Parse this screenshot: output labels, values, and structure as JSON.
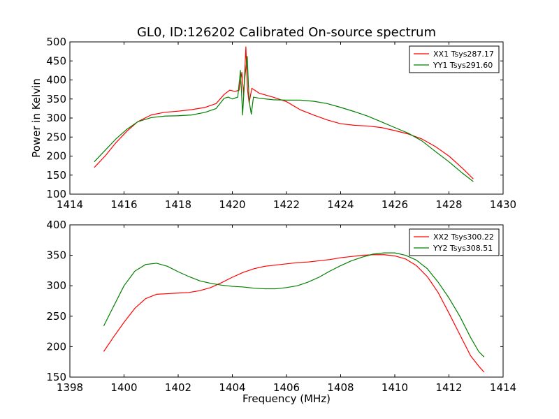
{
  "figure": {
    "title": "GL0, ID:126202 Calibrated On-source spectrum"
  },
  "chart_data": [
    {
      "type": "line",
      "title": "GL0, ID:126202 Calibrated On-source spectrum",
      "xlabel": "",
      "ylabel": "Power in Kelvin",
      "xlim": [
        1414,
        1430
      ],
      "ylim": [
        100,
        500
      ],
      "xticks": [
        1414,
        1416,
        1418,
        1420,
        1422,
        1424,
        1426,
        1428,
        1430
      ],
      "yticks": [
        100,
        150,
        200,
        250,
        300,
        350,
        400,
        450,
        500
      ],
      "grid": false,
      "legend_position": "top-right",
      "series": [
        {
          "name": "XX1 Tsys287.17",
          "color": "#ff0000",
          "points": [
            [
              1414.9,
              170
            ],
            [
              1415.3,
              200
            ],
            [
              1415.7,
              235
            ],
            [
              1416.1,
              265
            ],
            [
              1416.5,
              290
            ],
            [
              1417.0,
              308
            ],
            [
              1417.5,
              315
            ],
            [
              1418.0,
              318
            ],
            [
              1418.5,
              322
            ],
            [
              1419.0,
              328
            ],
            [
              1419.4,
              338
            ],
            [
              1419.7,
              362
            ],
            [
              1419.9,
              373
            ],
            [
              1420.1,
              370
            ],
            [
              1420.25,
              373
            ],
            [
              1420.35,
              420
            ],
            [
              1420.42,
              360
            ],
            [
              1420.5,
              487
            ],
            [
              1420.56,
              375
            ],
            [
              1420.62,
              340
            ],
            [
              1420.72,
              378
            ],
            [
              1420.85,
              372
            ],
            [
              1421.0,
              365
            ],
            [
              1421.5,
              355
            ],
            [
              1422.0,
              343
            ],
            [
              1422.5,
              322
            ],
            [
              1423.0,
              308
            ],
            [
              1423.5,
              295
            ],
            [
              1424.0,
              285
            ],
            [
              1424.5,
              281
            ],
            [
              1425.0,
              279
            ],
            [
              1425.5,
              275
            ],
            [
              1426.0,
              267
            ],
            [
              1426.5,
              258
            ],
            [
              1427.0,
              245
            ],
            [
              1427.5,
              225
            ],
            [
              1428.0,
              200
            ],
            [
              1428.5,
              168
            ],
            [
              1428.9,
              140
            ]
          ]
        },
        {
          "name": "YY1 Tsys291.60",
          "color": "#007f00",
          "points": [
            [
              1414.9,
              185
            ],
            [
              1415.3,
              215
            ],
            [
              1415.7,
              245
            ],
            [
              1416.1,
              270
            ],
            [
              1416.5,
              290
            ],
            [
              1417.0,
              301
            ],
            [
              1417.5,
              305
            ],
            [
              1418.0,
              306
            ],
            [
              1418.5,
              308
            ],
            [
              1419.0,
              315
            ],
            [
              1419.4,
              325
            ],
            [
              1419.7,
              352
            ],
            [
              1419.85,
              355
            ],
            [
              1420.0,
              350
            ],
            [
              1420.2,
              355
            ],
            [
              1420.3,
              425
            ],
            [
              1420.38,
              308
            ],
            [
              1420.45,
              400
            ],
            [
              1420.55,
              462
            ],
            [
              1420.62,
              345
            ],
            [
              1420.7,
              310
            ],
            [
              1420.78,
              355
            ],
            [
              1421.0,
              352
            ],
            [
              1421.5,
              348
            ],
            [
              1422.0,
              347
            ],
            [
              1422.5,
              347
            ],
            [
              1423.0,
              344
            ],
            [
              1423.5,
              338
            ],
            [
              1424.0,
              328
            ],
            [
              1424.5,
              317
            ],
            [
              1425.0,
              305
            ],
            [
              1425.5,
              290
            ],
            [
              1426.0,
              275
            ],
            [
              1426.5,
              260
            ],
            [
              1427.0,
              240
            ],
            [
              1427.5,
              212
            ],
            [
              1428.0,
              185
            ],
            [
              1428.5,
              155
            ],
            [
              1428.9,
              133
            ]
          ]
        }
      ]
    },
    {
      "type": "line",
      "title": "",
      "xlabel": "Frequency (MHz)",
      "ylabel": "",
      "xlim": [
        1398,
        1414
      ],
      "ylim": [
        150,
        400
      ],
      "xticks": [
        1398,
        1400,
        1402,
        1404,
        1406,
        1408,
        1410,
        1412,
        1414
      ],
      "yticks": [
        150,
        200,
        250,
        300,
        350,
        400
      ],
      "grid": false,
      "legend_position": "top-right",
      "series": [
        {
          "name": "XX2 Tsys300.22",
          "color": "#ff0000",
          "points": [
            [
              1399.25,
              192
            ],
            [
              1399.6,
              215
            ],
            [
              1400.0,
              240
            ],
            [
              1400.4,
              263
            ],
            [
              1400.8,
              279
            ],
            [
              1401.2,
              286
            ],
            [
              1401.6,
              287
            ],
            [
              1402.0,
              288
            ],
            [
              1402.4,
              289
            ],
            [
              1402.8,
              292
            ],
            [
              1403.2,
              297
            ],
            [
              1403.6,
              305
            ],
            [
              1404.0,
              314
            ],
            [
              1404.4,
              322
            ],
            [
              1404.8,
              328
            ],
            [
              1405.2,
              332
            ],
            [
              1405.6,
              334
            ],
            [
              1406.0,
              336
            ],
            [
              1406.4,
              338
            ],
            [
              1406.8,
              339
            ],
            [
              1407.2,
              341
            ],
            [
              1407.6,
              343
            ],
            [
              1408.0,
              346
            ],
            [
              1408.4,
              348
            ],
            [
              1408.8,
              350
            ],
            [
              1409.2,
              351
            ],
            [
              1409.6,
              351
            ],
            [
              1410.0,
              349
            ],
            [
              1410.4,
              344
            ],
            [
              1410.8,
              333
            ],
            [
              1411.2,
              315
            ],
            [
              1411.6,
              289
            ],
            [
              1412.0,
              255
            ],
            [
              1412.4,
              220
            ],
            [
              1412.8,
              185
            ],
            [
              1413.1,
              168
            ],
            [
              1413.3,
              158
            ]
          ]
        },
        {
          "name": "YY2 Tsys308.51",
          "color": "#007f00",
          "points": [
            [
              1399.25,
              234
            ],
            [
              1399.6,
              265
            ],
            [
              1400.0,
              300
            ],
            [
              1400.4,
              324
            ],
            [
              1400.8,
              335
            ],
            [
              1401.2,
              337
            ],
            [
              1401.6,
              332
            ],
            [
              1402.0,
              323
            ],
            [
              1402.4,
              315
            ],
            [
              1402.8,
              308
            ],
            [
              1403.2,
              304
            ],
            [
              1403.6,
              301
            ],
            [
              1404.0,
              299
            ],
            [
              1404.4,
              298
            ],
            [
              1404.8,
              296
            ],
            [
              1405.2,
              295
            ],
            [
              1405.6,
              295
            ],
            [
              1406.0,
              297
            ],
            [
              1406.4,
              300
            ],
            [
              1406.8,
              306
            ],
            [
              1407.2,
              314
            ],
            [
              1407.6,
              324
            ],
            [
              1408.0,
              333
            ],
            [
              1408.4,
              341
            ],
            [
              1408.8,
              347
            ],
            [
              1409.2,
              352
            ],
            [
              1409.6,
              354
            ],
            [
              1410.0,
              354
            ],
            [
              1410.4,
              350
            ],
            [
              1410.8,
              342
            ],
            [
              1411.2,
              328
            ],
            [
              1411.6,
              306
            ],
            [
              1412.0,
              280
            ],
            [
              1412.4,
              250
            ],
            [
              1412.8,
              215
            ],
            [
              1413.1,
              192
            ],
            [
              1413.3,
              183
            ]
          ]
        }
      ]
    }
  ]
}
